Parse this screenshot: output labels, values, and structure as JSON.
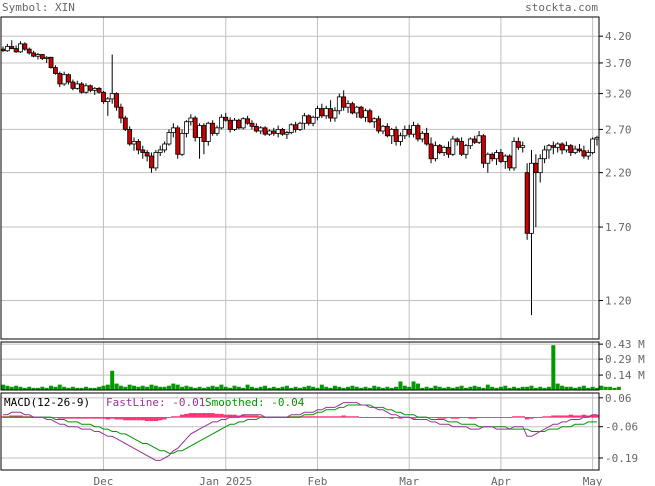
{
  "header": {
    "symbol_label": "Symbol: XIN",
    "site": "stockta.com"
  },
  "colors": {
    "up": "#ffffff",
    "down": "#cc0000",
    "outline": "#000000",
    "grid": "#c0c0c0",
    "volume": "#009900",
    "macd_hist": "#ff3377",
    "fast_line": "#993399",
    "smoothed_line": "#009900",
    "label_text": "#666666"
  },
  "chart_data": [
    {
      "type": "candlestick",
      "name": "price",
      "yscale": "log",
      "ylim": [
        1.0,
        4.6
      ],
      "y_ticks": [
        4.2,
        3.7,
        3.2,
        2.7,
        2.2,
        1.7,
        1.2
      ],
      "x_ticks": [
        {
          "label": "Dec",
          "index": 23
        },
        {
          "label": "Jan 2025",
          "index": 51
        },
        {
          "label": "Feb",
          "index": 72
        },
        {
          "label": "Mar",
          "index": 93
        },
        {
          "label": "Apr",
          "index": 114
        },
        {
          "label": "May",
          "index": 135
        }
      ],
      "candles": [
        [
          3.95,
          4.0,
          3.9,
          3.92
        ],
        [
          3.92,
          4.05,
          3.9,
          4.0
        ],
        [
          4.0,
          4.12,
          3.95,
          3.96
        ],
        [
          3.96,
          4.02,
          3.88,
          3.9
        ],
        [
          3.9,
          4.1,
          3.88,
          4.05
        ],
        [
          4.05,
          4.08,
          3.92,
          3.95
        ],
        [
          3.95,
          3.98,
          3.85,
          3.88
        ],
        [
          3.88,
          3.92,
          3.8,
          3.82
        ],
        [
          3.82,
          3.88,
          3.76,
          3.85
        ],
        [
          3.85,
          3.86,
          3.75,
          3.78
        ],
        [
          3.78,
          3.82,
          3.7,
          3.8
        ],
        [
          3.8,
          3.81,
          3.6,
          3.62
        ],
        [
          3.62,
          3.66,
          3.5,
          3.52
        ],
        [
          3.52,
          3.55,
          3.3,
          3.35
        ],
        [
          3.35,
          3.55,
          3.32,
          3.5
        ],
        [
          3.5,
          3.52,
          3.34,
          3.38
        ],
        [
          3.38,
          3.42,
          3.25,
          3.28
        ],
        [
          3.28,
          3.4,
          3.26,
          3.35
        ],
        [
          3.35,
          3.38,
          3.2,
          3.22
        ],
        [
          3.22,
          3.36,
          3.2,
          3.32
        ],
        [
          3.32,
          3.34,
          3.22,
          3.25
        ],
        [
          3.25,
          3.3,
          3.18,
          3.28
        ],
        [
          3.28,
          3.3,
          3.2,
          3.22
        ],
        [
          3.22,
          3.24,
          3.05,
          3.08
        ],
        [
          3.08,
          3.15,
          2.88,
          3.12
        ],
        [
          3.12,
          3.85,
          3.05,
          3.2
        ],
        [
          3.2,
          3.22,
          2.95,
          3.0
        ],
        [
          3.0,
          3.05,
          2.78,
          2.85
        ],
        [
          2.85,
          2.88,
          2.68,
          2.7
        ],
        [
          2.7,
          2.74,
          2.5,
          2.52
        ],
        [
          2.52,
          2.6,
          2.44,
          2.55
        ],
        [
          2.55,
          2.58,
          2.4,
          2.45
        ],
        [
          2.45,
          2.5,
          2.35,
          2.42
        ],
        [
          2.42,
          2.45,
          2.32,
          2.38
        ],
        [
          2.38,
          2.42,
          2.2,
          2.25
        ],
        [
          2.25,
          2.45,
          2.22,
          2.42
        ],
        [
          2.42,
          2.5,
          2.38,
          2.45
        ],
        [
          2.45,
          2.55,
          2.42,
          2.52
        ],
        [
          2.52,
          2.7,
          2.5,
          2.66
        ],
        [
          2.66,
          2.78,
          2.6,
          2.72
        ],
        [
          2.72,
          2.75,
          2.35,
          2.4
        ],
        [
          2.4,
          2.7,
          2.38,
          2.65
        ],
        [
          2.65,
          2.82,
          2.6,
          2.8
        ],
        [
          2.8,
          2.9,
          2.75,
          2.85
        ],
        [
          2.85,
          2.88,
          2.55,
          2.6
        ],
        [
          2.6,
          2.78,
          2.35,
          2.75
        ],
        [
          2.75,
          2.78,
          2.4,
          2.55
        ],
        [
          2.55,
          2.8,
          2.5,
          2.78
        ],
        [
          2.78,
          2.82,
          2.62,
          2.65
        ],
        [
          2.65,
          2.75,
          2.62,
          2.72
        ],
        [
          2.72,
          2.9,
          2.7,
          2.86
        ],
        [
          2.86,
          2.92,
          2.8,
          2.82
        ],
        [
          2.82,
          2.86,
          2.66,
          2.7
        ],
        [
          2.7,
          2.85,
          2.68,
          2.82
        ],
        [
          2.82,
          2.84,
          2.7,
          2.72
        ],
        [
          2.72,
          2.86,
          2.7,
          2.84
        ],
        [
          2.84,
          2.88,
          2.76,
          2.78
        ],
        [
          2.78,
          2.82,
          2.7,
          2.74
        ],
        [
          2.74,
          2.78,
          2.66,
          2.68
        ],
        [
          2.68,
          2.74,
          2.64,
          2.72
        ],
        [
          2.72,
          2.74,
          2.62,
          2.64
        ],
        [
          2.64,
          2.7,
          2.62,
          2.68
        ],
        [
          2.68,
          2.72,
          2.62,
          2.65
        ],
        [
          2.65,
          2.75,
          2.6,
          2.7
        ],
        [
          2.7,
          2.72,
          2.62,
          2.64
        ],
        [
          2.64,
          2.68,
          2.58,
          2.66
        ],
        [
          2.66,
          2.78,
          2.64,
          2.76
        ],
        [
          2.76,
          2.8,
          2.66,
          2.7
        ],
        [
          2.7,
          2.8,
          2.68,
          2.78
        ],
        [
          2.78,
          2.92,
          2.7,
          2.88
        ],
        [
          2.88,
          2.9,
          2.75,
          2.78
        ],
        [
          2.78,
          2.88,
          2.74,
          2.86
        ],
        [
          2.86,
          3.02,
          2.82,
          2.98
        ],
        [
          2.98,
          3.05,
          2.85,
          2.88
        ],
        [
          2.88,
          3.02,
          2.84,
          2.98
        ],
        [
          2.98,
          3.1,
          2.8,
          2.85
        ],
        [
          2.85,
          3.0,
          2.8,
          2.95
        ],
        [
          2.95,
          3.2,
          2.9,
          3.15
        ],
        [
          3.15,
          3.25,
          2.95,
          3.0
        ],
        [
          3.0,
          3.1,
          2.92,
          3.05
        ],
        [
          3.05,
          3.08,
          2.9,
          2.92
        ],
        [
          2.92,
          3.02,
          2.85,
          3.0
        ],
        [
          3.0,
          3.02,
          2.84,
          2.86
        ],
        [
          2.86,
          2.98,
          2.8,
          2.95
        ],
        [
          2.95,
          2.98,
          2.78,
          2.8
        ],
        [
          2.8,
          2.86,
          2.72,
          2.84
        ],
        [
          2.84,
          2.88,
          2.65,
          2.68
        ],
        [
          2.68,
          2.76,
          2.64,
          2.74
        ],
        [
          2.74,
          2.78,
          2.6,
          2.62
        ],
        [
          2.62,
          2.72,
          2.52,
          2.7
        ],
        [
          2.7,
          2.74,
          2.5,
          2.55
        ],
        [
          2.55,
          2.66,
          2.5,
          2.62
        ],
        [
          2.62,
          2.75,
          2.58,
          2.7
        ],
        [
          2.7,
          2.76,
          2.6,
          2.64
        ],
        [
          2.64,
          2.8,
          2.6,
          2.75
        ],
        [
          2.75,
          2.78,
          2.55,
          2.58
        ],
        [
          2.58,
          2.68,
          2.54,
          2.65
        ],
        [
          2.65,
          2.72,
          2.5,
          2.52
        ],
        [
          2.52,
          2.6,
          2.3,
          2.35
        ],
        [
          2.35,
          2.55,
          2.32,
          2.5
        ],
        [
          2.5,
          2.52,
          2.4,
          2.42
        ],
        [
          2.42,
          2.5,
          2.38,
          2.48
        ],
        [
          2.48,
          2.55,
          2.36,
          2.4
        ],
        [
          2.4,
          2.62,
          2.38,
          2.58
        ],
        [
          2.58,
          2.6,
          2.5,
          2.55
        ],
        [
          2.55,
          2.6,
          2.38,
          2.4
        ],
        [
          2.4,
          2.52,
          2.35,
          2.5
        ],
        [
          2.5,
          2.6,
          2.46,
          2.58
        ],
        [
          2.58,
          2.62,
          2.52,
          2.54
        ],
        [
          2.54,
          2.68,
          2.52,
          2.62
        ],
        [
          2.62,
          2.64,
          2.25,
          2.3
        ],
        [
          2.3,
          2.42,
          2.2,
          2.4
        ],
        [
          2.4,
          2.42,
          2.32,
          2.35
        ],
        [
          2.35,
          2.45,
          2.28,
          2.42
        ],
        [
          2.42,
          2.46,
          2.3,
          2.32
        ],
        [
          2.32,
          2.4,
          2.24,
          2.38
        ],
        [
          2.38,
          2.4,
          2.22,
          2.25
        ],
        [
          2.25,
          2.6,
          2.22,
          2.55
        ],
        [
          2.55,
          2.6,
          2.45,
          2.48
        ],
        [
          2.48,
          2.55,
          2.42,
          2.5
        ],
        [
          2.2,
          2.3,
          1.6,
          1.65
        ],
        [
          1.65,
          2.45,
          1.12,
          2.3
        ],
        [
          2.3,
          2.4,
          1.7,
          2.2
        ],
        [
          2.2,
          2.4,
          2.1,
          2.35
        ],
        [
          2.35,
          2.5,
          2.3,
          2.45
        ],
        [
          2.45,
          2.52,
          2.35,
          2.5
        ],
        [
          2.5,
          2.55,
          2.4,
          2.48
        ],
        [
          2.48,
          2.54,
          2.42,
          2.52
        ],
        [
          2.52,
          2.54,
          2.4,
          2.45
        ],
        [
          2.45,
          2.55,
          2.42,
          2.5
        ],
        [
          2.5,
          2.52,
          2.38,
          2.42
        ],
        [
          2.42,
          2.5,
          2.4,
          2.46
        ],
        [
          2.46,
          2.52,
          2.42,
          2.44
        ],
        [
          2.44,
          2.5,
          2.35,
          2.38
        ],
        [
          2.38,
          2.45,
          2.34,
          2.42
        ],
        [
          2.42,
          2.6,
          2.4,
          2.58
        ],
        [
          2.58,
          2.62,
          2.5,
          2.6
        ]
      ]
    },
    {
      "type": "bar",
      "name": "volume",
      "unit": "M",
      "ylim": [
        0,
        0.45
      ],
      "y_ticks": [
        {
          "label": "0.43 M",
          "value": 0.43
        },
        {
          "label": "0.29 M",
          "value": 0.29
        },
        {
          "label": "0.14 M",
          "value": 0.14
        }
      ],
      "values": [
        0.05,
        0.04,
        0.03,
        0.04,
        0.03,
        0.02,
        0.03,
        0.02,
        0.02,
        0.03,
        0.02,
        0.04,
        0.03,
        0.05,
        0.03,
        0.02,
        0.03,
        0.02,
        0.02,
        0.03,
        0.02,
        0.02,
        0.03,
        0.04,
        0.05,
        0.18,
        0.06,
        0.04,
        0.03,
        0.05,
        0.04,
        0.03,
        0.04,
        0.03,
        0.05,
        0.04,
        0.03,
        0.03,
        0.04,
        0.06,
        0.05,
        0.03,
        0.04,
        0.03,
        0.02,
        0.03,
        0.02,
        0.03,
        0.04,
        0.03,
        0.05,
        0.03,
        0.02,
        0.04,
        0.03,
        0.02,
        0.05,
        0.03,
        0.02,
        0.03,
        0.04,
        0.02,
        0.03,
        0.02,
        0.03,
        0.04,
        0.02,
        0.03,
        0.02,
        0.03,
        0.04,
        0.03,
        0.02,
        0.05,
        0.03,
        0.02,
        0.04,
        0.03,
        0.02,
        0.03,
        0.04,
        0.03,
        0.02,
        0.03,
        0.02,
        0.04,
        0.03,
        0.02,
        0.03,
        0.02,
        0.03,
        0.08,
        0.04,
        0.03,
        0.08,
        0.06,
        0.02,
        0.03,
        0.02,
        0.04,
        0.03,
        0.02,
        0.03,
        0.02,
        0.03,
        0.04,
        0.02,
        0.03,
        0.04,
        0.03,
        0.02,
        0.05,
        0.03,
        0.02,
        0.03,
        0.04,
        0.02,
        0.03,
        0.02,
        0.03,
        0.03,
        0.04,
        0.02,
        0.03,
        0.02,
        0.03,
        0.42,
        0.06,
        0.04,
        0.03,
        0.03,
        0.02,
        0.03,
        0.04,
        0.02,
        0.03,
        0.02,
        0.04,
        0.03,
        0.03,
        0.02,
        0.03
      ]
    },
    {
      "type": "macd",
      "name": "macd",
      "title": "MACD(12-26-9)",
      "fast_label": "FastLine: -0.01",
      "smoothed_label": "Smoothed: -0.04",
      "ylim": [
        -0.24,
        0.08
      ],
      "y_ticks": [
        {
          "label": "0.06",
          "value": 0.06
        },
        {
          "label": "-0.06",
          "value": -0.06
        },
        {
          "label": "-0.19",
          "value": -0.19
        }
      ],
      "fast": [
        -0.01,
        -0.01,
        0.0,
        0.0,
        0.0,
        -0.01,
        -0.01,
        -0.02,
        -0.02,
        -0.02,
        -0.03,
        -0.03,
        -0.04,
        -0.05,
        -0.05,
        -0.06,
        -0.06,
        -0.06,
        -0.07,
        -0.07,
        -0.07,
        -0.08,
        -0.08,
        -0.09,
        -0.1,
        -0.1,
        -0.11,
        -0.12,
        -0.13,
        -0.14,
        -0.15,
        -0.16,
        -0.17,
        -0.18,
        -0.19,
        -0.2,
        -0.2,
        -0.19,
        -0.18,
        -0.16,
        -0.15,
        -0.13,
        -0.11,
        -0.09,
        -0.08,
        -0.07,
        -0.06,
        -0.05,
        -0.04,
        -0.04,
        -0.03,
        -0.03,
        -0.02,
        -0.02,
        -0.02,
        -0.01,
        -0.01,
        -0.01,
        -0.01,
        -0.01,
        -0.02,
        -0.02,
        -0.02,
        -0.02,
        -0.02,
        -0.02,
        -0.01,
        -0.01,
        -0.01,
        0.0,
        0.0,
        0.0,
        0.01,
        0.01,
        0.02,
        0.02,
        0.02,
        0.03,
        0.04,
        0.04,
        0.04,
        0.04,
        0.03,
        0.03,
        0.02,
        0.02,
        0.01,
        0.01,
        0.0,
        -0.01,
        -0.01,
        -0.02,
        -0.02,
        -0.02,
        -0.03,
        -0.03,
        -0.03,
        -0.03,
        -0.04,
        -0.04,
        -0.05,
        -0.05,
        -0.05,
        -0.06,
        -0.06,
        -0.06,
        -0.06,
        -0.07,
        -0.07,
        -0.07,
        -0.06,
        -0.06,
        -0.06,
        -0.07,
        -0.07,
        -0.07,
        -0.07,
        -0.06,
        -0.06,
        -0.06,
        -0.1,
        -0.1,
        -0.09,
        -0.08,
        -0.07,
        -0.06,
        -0.05,
        -0.05,
        -0.04,
        -0.04,
        -0.03,
        -0.03,
        -0.03,
        -0.02,
        -0.02,
        -0.01,
        -0.01
      ],
      "smoothed": [
        -0.02,
        -0.02,
        -0.02,
        -0.02,
        -0.02,
        -0.02,
        -0.02,
        -0.02,
        -0.02,
        -0.02,
        -0.02,
        -0.02,
        -0.03,
        -0.03,
        -0.03,
        -0.04,
        -0.04,
        -0.04,
        -0.05,
        -0.05,
        -0.05,
        -0.06,
        -0.06,
        -0.07,
        -0.07,
        -0.08,
        -0.08,
        -0.09,
        -0.09,
        -0.1,
        -0.11,
        -0.12,
        -0.13,
        -0.13,
        -0.14,
        -0.15,
        -0.16,
        -0.16,
        -0.17,
        -0.17,
        -0.16,
        -0.16,
        -0.15,
        -0.14,
        -0.13,
        -0.12,
        -0.11,
        -0.1,
        -0.09,
        -0.08,
        -0.07,
        -0.06,
        -0.05,
        -0.05,
        -0.04,
        -0.04,
        -0.03,
        -0.03,
        -0.03,
        -0.02,
        -0.02,
        -0.02,
        -0.02,
        -0.02,
        -0.02,
        -0.02,
        -0.02,
        -0.02,
        -0.02,
        -0.01,
        -0.01,
        -0.01,
        0.0,
        0.0,
        0.01,
        0.01,
        0.01,
        0.02,
        0.02,
        0.03,
        0.03,
        0.03,
        0.03,
        0.03,
        0.03,
        0.02,
        0.02,
        0.02,
        0.01,
        0.01,
        0.0,
        0.0,
        -0.01,
        -0.01,
        -0.01,
        -0.02,
        -0.02,
        -0.02,
        -0.03,
        -0.03,
        -0.03,
        -0.03,
        -0.04,
        -0.04,
        -0.04,
        -0.05,
        -0.05,
        -0.05,
        -0.05,
        -0.06,
        -0.06,
        -0.06,
        -0.06,
        -0.06,
        -0.06,
        -0.06,
        -0.07,
        -0.07,
        -0.07,
        -0.07,
        -0.07,
        -0.08,
        -0.08,
        -0.08,
        -0.08,
        -0.07,
        -0.07,
        -0.07,
        -0.06,
        -0.06,
        -0.06,
        -0.05,
        -0.05,
        -0.05,
        -0.04,
        -0.04,
        -0.04
      ]
    }
  ]
}
